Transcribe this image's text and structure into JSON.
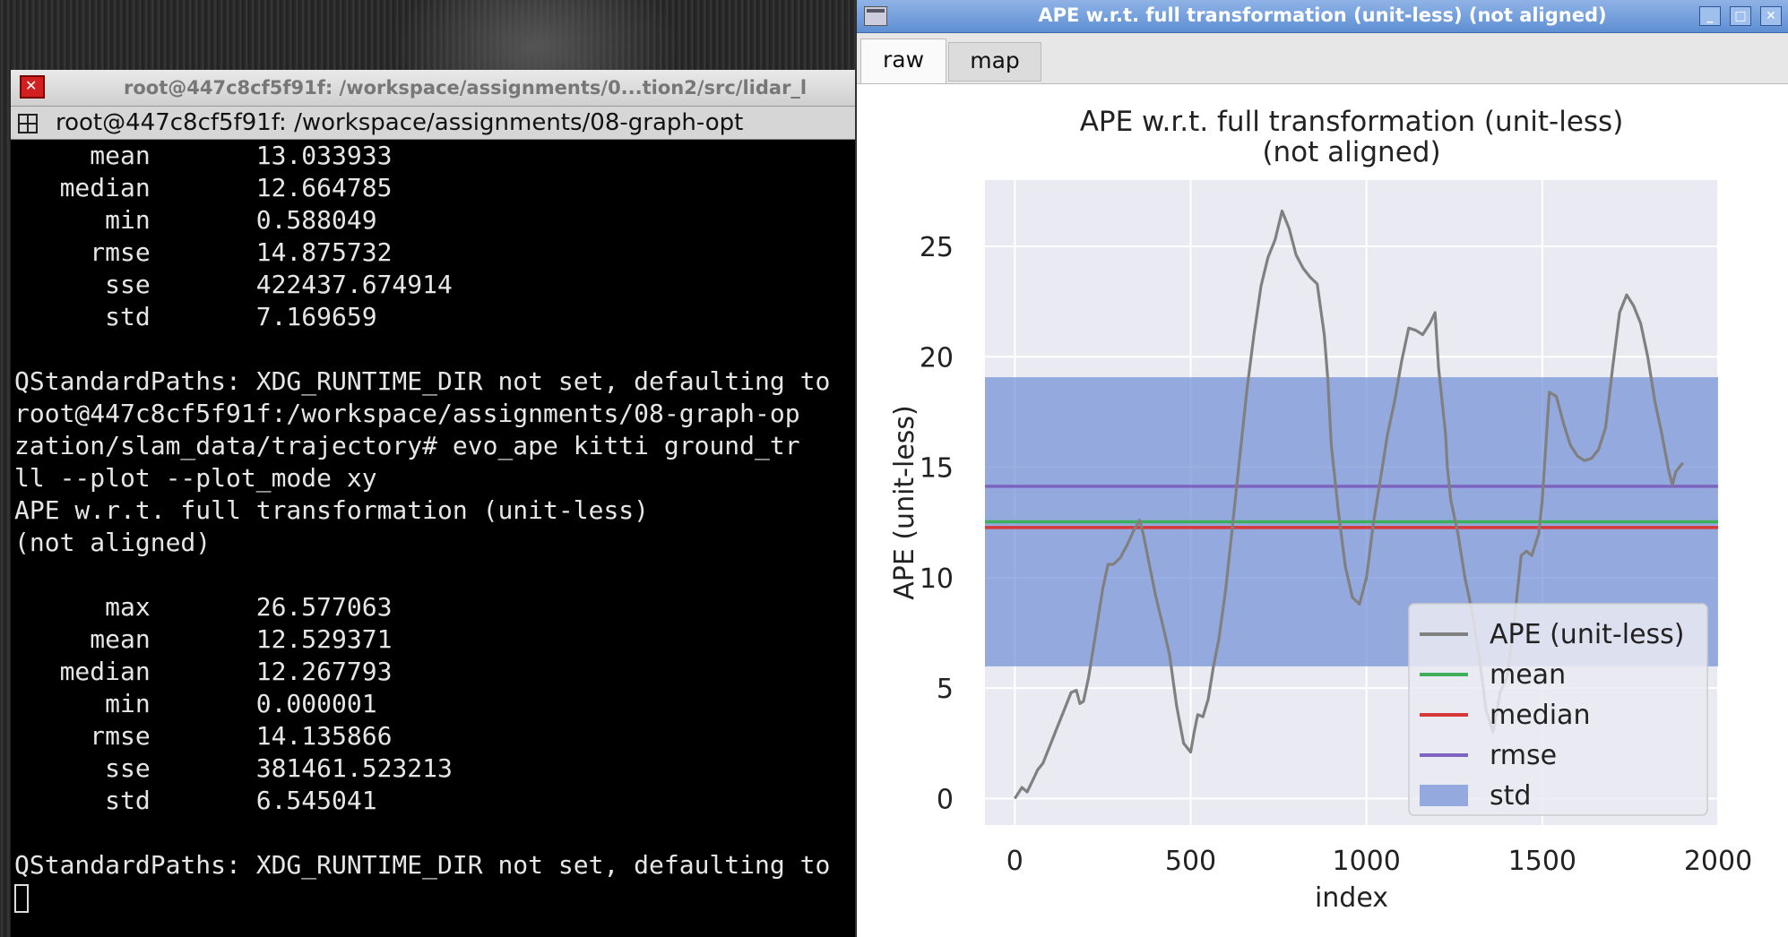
{
  "terminal": {
    "title": "root@447c8cf5f91f: /workspace/assignments/0...tion2/src/lidar_l",
    "tab_label": "root@447c8cf5f91f: /workspace/assignments/08-graph-opt",
    "lines": [
      "     mean       13.033933",
      "   median       12.664785",
      "      min       0.588049",
      "     rmse       14.875732",
      "      sse       422437.674914",
      "      std       7.169659",
      "",
      "QStandardPaths: XDG_RUNTIME_DIR not set, defaulting to",
      "root@447c8cf5f91f:/workspace/assignments/08-graph-op",
      "zation/slam_data/trajectory# evo_ape kitti ground_tr",
      "ll --plot --plot_mode xy",
      "APE w.r.t. full transformation (unit-less)",
      "(not aligned)",
      "",
      "      max       26.577063",
      "     mean       12.529371",
      "   median       12.267793",
      "      min       0.000001",
      "     rmse       14.135866",
      "      sse       381461.523213",
      "      std       6.545041",
      "",
      "QStandardPaths: XDG_RUNTIME_DIR not set, defaulting to"
    ]
  },
  "plot_window": {
    "title": "APE w.r.t. full transformation (unit-less) (not aligned)",
    "tabs": [
      "raw",
      "map"
    ],
    "active_tab": "raw",
    "buttons": {
      "minimize": "_",
      "maximize": "□",
      "close": "✕"
    }
  },
  "chart_data": {
    "type": "line",
    "title_line1": "APE w.r.t. full transformation (unit-less)",
    "title_line2": "(not aligned)",
    "xlabel": "index",
    "ylabel": "APE (unit-less)",
    "xlim": [
      -85,
      2000
    ],
    "ylim": [
      -1.2,
      28
    ],
    "xticks": [
      0,
      500,
      1000,
      1500,
      2000
    ],
    "yticks": [
      0,
      5,
      10,
      15,
      20,
      25
    ],
    "grid": true,
    "legend_position": "lower-right",
    "colors": {
      "ape": "#808080",
      "mean": "#3fae5a",
      "median": "#d9383a",
      "rmse": "#7d64c0",
      "std": "#6f8fd6",
      "background": "#eaeaf2"
    },
    "series": [
      {
        "name": "APE (unit-less)",
        "x": [
          0,
          20,
          35,
          50,
          65,
          80,
          100,
          120,
          140,
          160,
          175,
          185,
          195,
          210,
          230,
          250,
          265,
          280,
          300,
          320,
          340,
          355,
          365,
          380,
          400,
          420,
          440,
          460,
          480,
          500,
          510,
          520,
          535,
          550,
          565,
          580,
          600,
          620,
          640,
          660,
          680,
          700,
          720,
          740,
          760,
          780,
          790,
          800,
          820,
          840,
          860,
          880,
          890,
          900,
          920,
          940,
          960,
          980,
          1000,
          1020,
          1040,
          1060,
          1080,
          1100,
          1120,
          1140,
          1160,
          1180,
          1195,
          1205,
          1215,
          1225,
          1230,
          1240,
          1260,
          1280,
          1300,
          1320,
          1340,
          1360,
          1380,
          1400,
          1420,
          1440,
          1455,
          1470,
          1480,
          1490,
          1500,
          1510,
          1520,
          1540,
          1560,
          1580,
          1600,
          1620,
          1640,
          1660,
          1680,
          1700,
          1720,
          1740,
          1760,
          1780,
          1800,
          1820,
          1840,
          1860,
          1870,
          1880,
          1890,
          1900
        ],
        "values": [
          0,
          0.5,
          0.3,
          0.8,
          1.3,
          1.6,
          2.4,
          3.2,
          4.0,
          4.8,
          4.9,
          4.3,
          4.4,
          5.5,
          7.5,
          9.5,
          10.6,
          10.6,
          10.9,
          11.5,
          12.2,
          12.6,
          12.0,
          10.8,
          9.2,
          7.9,
          6.5,
          4.2,
          2.5,
          2.1,
          3.0,
          3.8,
          3.7,
          4.5,
          6.0,
          7.2,
          9.5,
          12.5,
          15.5,
          18.5,
          21.0,
          23.2,
          24.5,
          25.3,
          26.6,
          25.8,
          25.2,
          24.6,
          24.0,
          23.6,
          23.3,
          21.0,
          19.0,
          16.0,
          13.0,
          10.5,
          9.1,
          8.8,
          10.0,
          12.5,
          14.5,
          16.5,
          18.0,
          19.8,
          21.3,
          21.2,
          21.0,
          21.5,
          22.0,
          19.5,
          18.0,
          16.5,
          15.0,
          13.5,
          12.0,
          10.0,
          8.5,
          6.5,
          4.0,
          3.0,
          4.8,
          5.5,
          8.0,
          11.0,
          11.2,
          11.0,
          11.5,
          12.0,
          13.5,
          16.0,
          18.4,
          18.2,
          17.0,
          16.0,
          15.5,
          15.3,
          15.4,
          15.8,
          16.8,
          19.5,
          22.0,
          22.8,
          22.3,
          21.5,
          20.0,
          18.0,
          16.5,
          14.8,
          14.2,
          14.8,
          15.0,
          15.2
        ]
      },
      {
        "name": "mean",
        "value": 12.529371
      },
      {
        "name": "median",
        "value": 12.267793
      },
      {
        "name": "rmse",
        "value": 14.135866
      },
      {
        "name": "std",
        "value": 6.545041
      }
    ]
  }
}
